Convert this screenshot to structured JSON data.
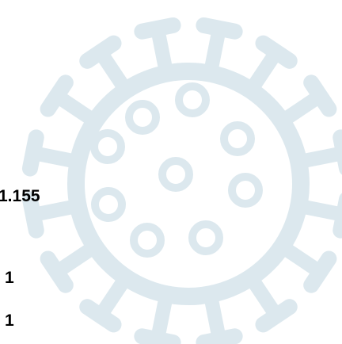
{
  "stats": [
    {
      "value": "1.155"
    },
    {
      "value": "1"
    },
    {
      "value": "1"
    }
  ]
}
